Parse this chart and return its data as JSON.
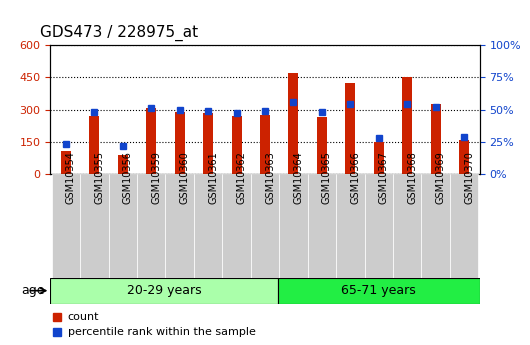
{
  "title": "GDS473 / 228975_at",
  "categories": [
    "GSM10354",
    "GSM10355",
    "GSM10356",
    "GSM10359",
    "GSM10360",
    "GSM10361",
    "GSM10362",
    "GSM10363",
    "GSM10364",
    "GSM10365",
    "GSM10366",
    "GSM10367",
    "GSM10368",
    "GSM10369",
    "GSM10370"
  ],
  "count_values": [
    110,
    270,
    90,
    305,
    290,
    285,
    270,
    275,
    470,
    265,
    425,
    150,
    450,
    325,
    160
  ],
  "percentile_values": [
    23,
    48,
    22,
    51,
    50,
    49,
    47,
    49,
    56,
    48,
    54,
    28,
    54,
    52,
    29
  ],
  "group1_label": "20-29 years",
  "group1_count": 8,
  "group2_label": "65-71 years",
  "group2_count": 7,
  "age_label": "age",
  "ylim_left": [
    0,
    600
  ],
  "ylim_right": [
    0,
    100
  ],
  "yticks_left": [
    0,
    150,
    300,
    450,
    600
  ],
  "yticks_right": [
    0,
    25,
    50,
    75,
    100
  ],
  "bar_color": "#CC2200",
  "marker_color": "#1144CC",
  "plot_bg_color": "#FFFFFF",
  "tick_bg_color": "#CCCCCC",
  "group1_color": "#AAFFAA",
  "group2_color": "#22EE44",
  "legend_count_label": "count",
  "legend_pct_label": "percentile rank within the sample",
  "left_tick_color": "#CC2200",
  "right_tick_color": "#1144CC",
  "bar_width": 0.35,
  "title_fontsize": 11,
  "tick_fontsize": 7,
  "label_fontsize": 8
}
